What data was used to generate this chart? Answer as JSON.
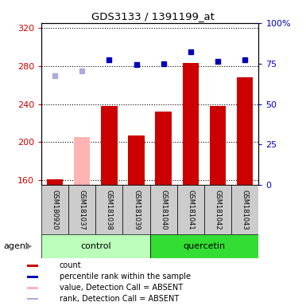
{
  "title": "GDS3133 / 1391199_at",
  "samples": [
    "GSM180920",
    "GSM181037",
    "GSM181038",
    "GSM181039",
    "GSM181040",
    "GSM181041",
    "GSM181042",
    "GSM181043"
  ],
  "bar_values": [
    161,
    205,
    238,
    207,
    232,
    283,
    238,
    268
  ],
  "bar_colors": [
    "#cc0000",
    "#ffb3b3",
    "#cc0000",
    "#cc0000",
    "#cc0000",
    "#cc0000",
    "#cc0000",
    "#cc0000"
  ],
  "rank_values": [
    67.5,
    70.5,
    77.5,
    74.5,
    75,
    82,
    76.5,
    77.5
  ],
  "rank_colors": [
    "#aaaadd",
    "#aaaadd",
    "#0000bb",
    "#0000bb",
    "#0000bb",
    "#0000bb",
    "#0000bb",
    "#0000bb"
  ],
  "groups": [
    {
      "label": "control",
      "start": 0,
      "end": 4,
      "color": "#bbffbb"
    },
    {
      "label": "quercetin",
      "start": 4,
      "end": 8,
      "color": "#33dd33"
    }
  ],
  "ylim_left": [
    155,
    325
  ],
  "ylim_right": [
    0,
    100
  ],
  "yticks_left": [
    160,
    200,
    240,
    280,
    320
  ],
  "yticks_right": [
    0,
    25,
    50,
    75,
    100
  ],
  "left_color": "#cc0000",
  "right_color": "#0000cc",
  "legend_items": [
    {
      "color": "#cc0000",
      "label": "count",
      "shape": "square"
    },
    {
      "color": "#0000bb",
      "label": "percentile rank within the sample",
      "shape": "square"
    },
    {
      "color": "#ffb3b3",
      "label": "value, Detection Call = ABSENT",
      "shape": "square"
    },
    {
      "color": "#aaaadd",
      "label": "rank, Detection Call = ABSENT",
      "shape": "square"
    }
  ]
}
